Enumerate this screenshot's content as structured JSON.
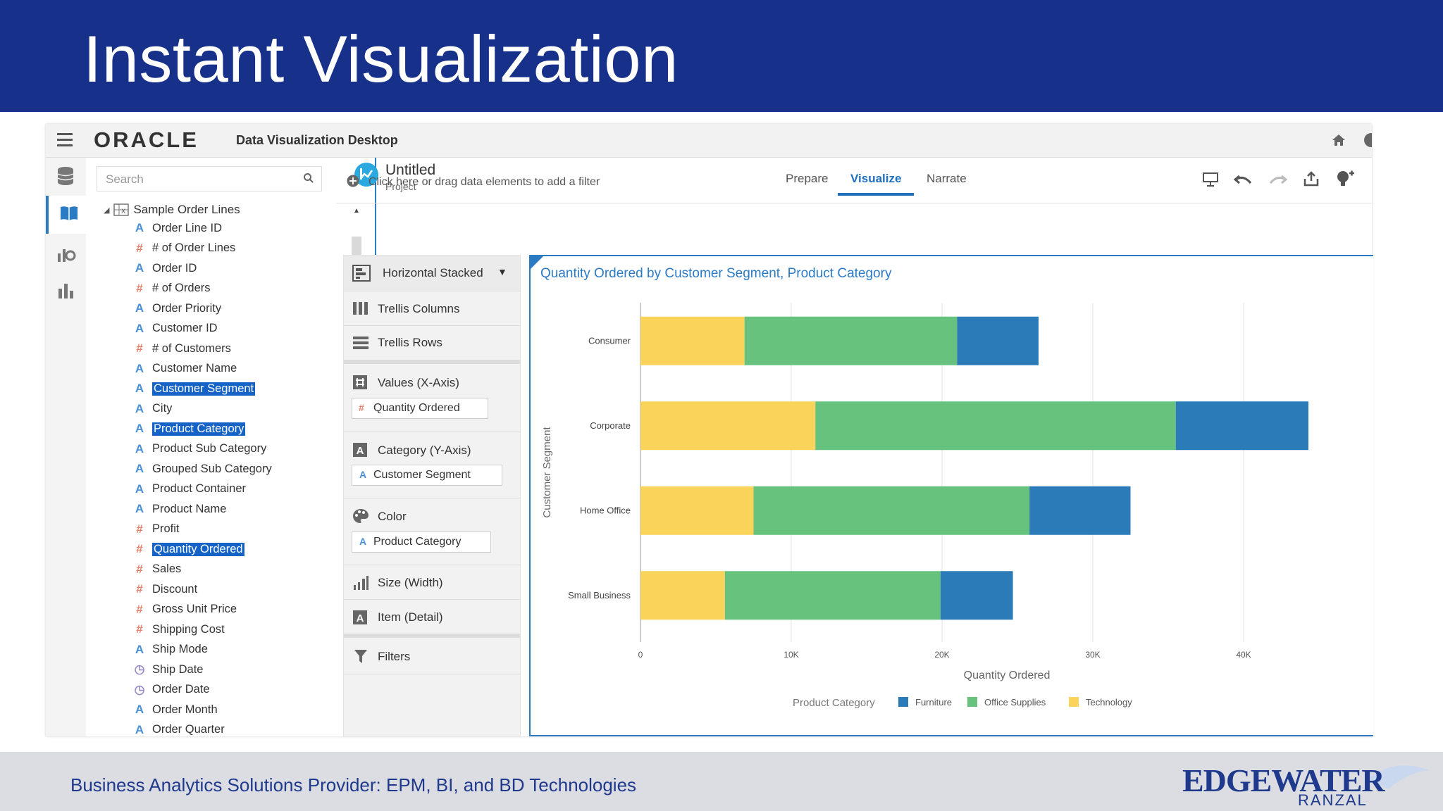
{
  "slide": {
    "title": "Instant Visualization",
    "footer_text": "Business Analytics Solutions Provider:  EPM, BI, and BD Technologies",
    "logo_main": "EDGEWATER",
    "logo_sub": "RANZAL"
  },
  "app": {
    "vendor": "ORACLE",
    "name": "Data Visualization Desktop",
    "project_title": "Untitled",
    "project_subtitle": "Project",
    "tabs": [
      {
        "label": "Prepare",
        "active": false
      },
      {
        "label": "Visualize",
        "active": true
      },
      {
        "label": "Narrate",
        "active": false
      }
    ],
    "filter_placeholder": "Click here or drag data elements to add a filter"
  },
  "data_panel": {
    "search_placeholder": "Search",
    "source_name": "Sample Order Lines",
    "fields": [
      {
        "label": "Order Line ID",
        "kind": "attribute",
        "selected": false
      },
      {
        "label": "# of Order Lines",
        "kind": "measure",
        "selected": false
      },
      {
        "label": "Order ID",
        "kind": "attribute",
        "selected": false
      },
      {
        "label": "# of Orders",
        "kind": "measure",
        "selected": false
      },
      {
        "label": "Order Priority",
        "kind": "attribute",
        "selected": false
      },
      {
        "label": "Customer ID",
        "kind": "attribute",
        "selected": false
      },
      {
        "label": "# of Customers",
        "kind": "measure",
        "selected": false
      },
      {
        "label": "Customer Name",
        "kind": "attribute",
        "selected": false
      },
      {
        "label": "Customer Segment",
        "kind": "attribute",
        "selected": true
      },
      {
        "label": "City",
        "kind": "attribute",
        "selected": false
      },
      {
        "label": "Product Category",
        "kind": "attribute",
        "selected": true
      },
      {
        "label": "Product Sub Category",
        "kind": "attribute",
        "selected": false
      },
      {
        "label": "Grouped Sub Category",
        "kind": "attribute",
        "selected": false
      },
      {
        "label": "Product Container",
        "kind": "attribute",
        "selected": false
      },
      {
        "label": "Product Name",
        "kind": "attribute",
        "selected": false
      },
      {
        "label": "Profit",
        "kind": "measure",
        "selected": false
      },
      {
        "label": "Quantity Ordered",
        "kind": "measure",
        "selected": true
      },
      {
        "label": "Sales",
        "kind": "measure",
        "selected": false
      },
      {
        "label": "Discount",
        "kind": "measure",
        "selected": false
      },
      {
        "label": "Gross Unit Price",
        "kind": "measure",
        "selected": false
      },
      {
        "label": "Shipping Cost",
        "kind": "measure",
        "selected": false
      },
      {
        "label": "Ship Mode",
        "kind": "attribute",
        "selected": false
      },
      {
        "label": "Ship Date",
        "kind": "time",
        "selected": false
      },
      {
        "label": "Order Date",
        "kind": "time",
        "selected": false
      },
      {
        "label": "Order Month",
        "kind": "attribute",
        "selected": false
      },
      {
        "label": "Order Quarter",
        "kind": "attribute",
        "selected": false
      }
    ]
  },
  "grammar": {
    "chart_type": "Horizontal Stacked",
    "trellis_columns": "Trellis Columns",
    "trellis_rows": "Trellis Rows",
    "values_label": "Values (X-Axis)",
    "values_field": "Quantity Ordered",
    "category_label": "Category (Y-Axis)",
    "category_field": "Customer Segment",
    "color_label": "Color",
    "color_field": "Product Category",
    "size_label": "Size (Width)",
    "item_label": "Item (Detail)",
    "filters_label": "Filters"
  },
  "chart_data": {
    "type": "bar",
    "orientation": "horizontal",
    "stacked": true,
    "title": "Quantity Ordered by Customer Segment, Product Category",
    "xlabel": "Quantity Ordered",
    "ylabel": "Customer Segment",
    "categories": [
      "Consumer",
      "Corporate",
      "Home Office",
      "Small Business"
    ],
    "x_ticks": [
      "0",
      "10K",
      "20K",
      "30K",
      "40K"
    ],
    "xlim": [
      0,
      46000
    ],
    "grid": true,
    "legend_title": "Product Category",
    "legend_position": "bottom",
    "series": [
      {
        "name": "Technology",
        "color": "#f9d35a",
        "values": [
          6900,
          11600,
          7500,
          5600
        ]
      },
      {
        "name": "Office Supplies",
        "color": "#67c27e",
        "values": [
          14100,
          23900,
          18300,
          14300
        ]
      },
      {
        "name": "Furniture",
        "color": "#2b7bb8",
        "values": [
          5400,
          8800,
          6700,
          4800
        ]
      }
    ],
    "legend_order": [
      "Furniture",
      "Office Supplies",
      "Technology"
    ]
  }
}
